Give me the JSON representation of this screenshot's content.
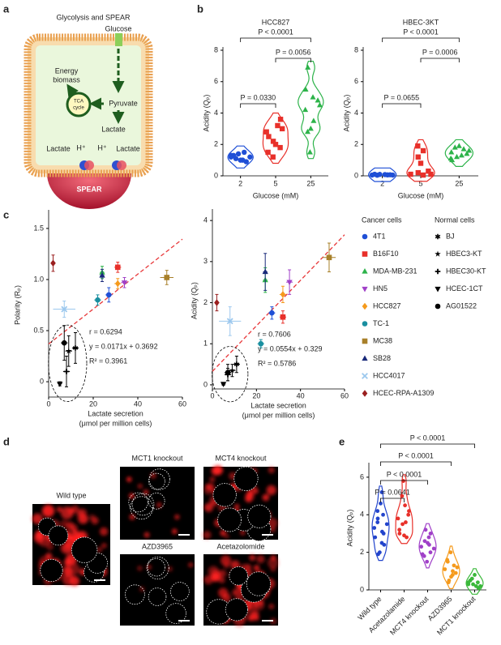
{
  "panel_labels": [
    "a",
    "b",
    "c",
    "d",
    "e"
  ],
  "panel_a": {
    "title": "Glycolysis and SPEAR",
    "glucose": "Glucose",
    "energy": [
      "Energy",
      "biomass"
    ],
    "tca": [
      "TCA",
      "cycle"
    ],
    "pyruvate": "Pyruvate",
    "lactate": "Lactate",
    "lactate_left": "Lactate",
    "h_left": "H⁺",
    "h_right": "H⁺",
    "lactate_right": "Lactate",
    "spear": "SPEAR"
  },
  "panel_d": {
    "images": [
      "Wild type",
      "MCT1 knockout",
      "MCT4 knockout",
      "AZD3965",
      "Acetazolomide"
    ]
  },
  "chart_data": [
    {
      "type": "violin",
      "title": "HCC827",
      "xlabel": "Glucose (mM)",
      "ylabel": "Acidity (Qₚ)",
      "categories": [
        "2",
        "5",
        "25"
      ],
      "ylim": [
        0,
        8
      ],
      "yticks": [
        0,
        2,
        4,
        6,
        8
      ],
      "groups": [
        {
          "color": "#1f4fd6",
          "marker": "circle",
          "values": [
            1.2,
            1.0,
            1.3,
            1.5,
            1.1,
            0.9,
            1.4,
            1.2,
            1.0,
            1.3
          ]
        },
        {
          "color": "#e8302a",
          "marker": "square",
          "values": [
            2.8,
            3.2,
            2.5,
            1.8,
            1.2,
            3.0,
            2.2,
            3.6,
            2.0,
            1.5
          ]
        },
        {
          "color": "#2db34a",
          "marker": "triangle",
          "values": [
            6.9,
            5.0,
            4.2,
            3.5,
            2.8,
            4.8,
            1.5,
            4.5,
            3.0,
            5.5
          ]
        }
      ],
      "comparisons": [
        {
          "label": "P = 0.0330",
          "pair": [
            0,
            1
          ]
        },
        {
          "label": "P = 0.0056",
          "pair": [
            1,
            2
          ]
        },
        {
          "label": "P < 0.0001",
          "pair": [
            0,
            2
          ]
        }
      ]
    },
    {
      "type": "violin",
      "title": "HBEC-3KT",
      "xlabel": "Glucose (mM)",
      "ylabel": "Acidity (Qₚ)",
      "categories": [
        "2",
        "5",
        "25"
      ],
      "ylim": [
        0,
        8
      ],
      "yticks": [
        0,
        2,
        4,
        6,
        8
      ],
      "groups": [
        {
          "color": "#1f4fd6",
          "marker": "circle",
          "values": [
            0.05,
            0.08,
            0.1,
            0.06,
            0.04,
            0.07,
            0.09,
            0.05
          ]
        },
        {
          "color": "#e8302a",
          "marker": "square",
          "values": [
            0.1,
            0.05,
            1.9,
            1.6,
            1.2,
            0.3,
            0.2,
            0.1,
            0.8
          ]
        },
        {
          "color": "#2db34a",
          "marker": "triangle",
          "values": [
            1.0,
            1.3,
            1.5,
            1.7,
            1.8,
            1.4,
            1.2,
            1.6,
            1.9,
            1.1
          ]
        }
      ],
      "comparisons": [
        {
          "label": "P = 0.0655",
          "pair": [
            0,
            1
          ]
        },
        {
          "label": "P = 0.0006",
          "pair": [
            1,
            2
          ]
        },
        {
          "label": "P < 0.0001",
          "pair": [
            0,
            2
          ]
        }
      ]
    },
    {
      "type": "scatter",
      "xlabel": [
        "Lactate secretion",
        "(μmol per million cells)"
      ],
      "ylabel": "Polarity (Rₚ)",
      "xlim": [
        0,
        60
      ],
      "xticks": [
        0,
        20,
        40,
        60
      ],
      "ylim": [
        -0.15,
        1.65
      ],
      "yticks": [
        0,
        0.5,
        {
          "value": 1,
          "label": "1.0"
        },
        1.5
      ],
      "r_label": "r = 0.6294",
      "fit_label": "y = 0.0171x + 0.3692",
      "r2_label": "R² = 0.3961",
      "series_groups": [
        {
          "name": "Cancer cells",
          "series": [
            {
              "name": "4T1",
              "color": "#1f4fd6",
              "marker": "circle",
              "x": [
                27
              ],
              "values": [
                0.85
              ],
              "xerr": [
                1.5
              ],
              "yerr": [
                0.07
              ]
            },
            {
              "name": "B16F10",
              "color": "#e8302a",
              "marker": "square",
              "x": [
                31
              ],
              "values": [
                1.12
              ],
              "xerr": [
                1.5
              ],
              "yerr": [
                0.05
              ]
            },
            {
              "name": "MDA-MB-231",
              "color": "#2db34a",
              "marker": "triangle",
              "x": [
                24
              ],
              "values": [
                1.07
              ],
              "xerr": [
                1
              ],
              "yerr": [
                0.06
              ]
            },
            {
              "name": "HN5",
              "color": "#a040c8",
              "marker": "triangle-down",
              "x": [
                34
              ],
              "values": [
                0.97
              ],
              "xerr": [
                1.5
              ],
              "yerr": [
                0.05
              ]
            },
            {
              "name": "HCC827",
              "color": "#f59a1c",
              "marker": "diamond",
              "x": [
                31
              ],
              "values": [
                0.96
              ],
              "xerr": [
                1.5
              ],
              "yerr": [
                0.05
              ]
            },
            {
              "name": "TC-1",
              "color": "#1a8fa0",
              "marker": "circle",
              "x": [
                22
              ],
              "values": [
                0.8
              ],
              "xerr": [
                1.5
              ],
              "yerr": [
                0.05
              ]
            },
            {
              "name": "MC38",
              "color": "#a8802a",
              "marker": "square",
              "x": [
                53
              ],
              "values": [
                1.02
              ],
              "xerr": [
                3
              ],
              "yerr": [
                0.07
              ]
            },
            {
              "name": "SB28",
              "color": "#1a2a7a",
              "marker": "triangle",
              "x": [
                24
              ],
              "values": [
                1.04
              ],
              "xerr": [
                1
              ],
              "yerr": [
                0.06
              ]
            },
            {
              "name": "HCC4017",
              "color": "#9cc8ee",
              "marker": "x",
              "x": [
                7
              ],
              "values": [
                0.71
              ],
              "xerr": [
                5
              ],
              "yerr": [
                0.08
              ]
            },
            {
              "name": "HCEC-RPA-A1309",
              "color": "#9a1f1f",
              "marker": "diamond",
              "x": [
                2
              ],
              "values": [
                1.16
              ],
              "xerr": [
                0.8
              ],
              "yerr": [
                0.08
              ]
            }
          ]
        },
        {
          "name": "Normal cells",
          "series": [
            {
              "name": "BJ",
              "color": "#000000",
              "marker": "asterisk",
              "x": [
                12
              ],
              "values": [
                0.33
              ],
              "xerr": [
                1.5
              ],
              "yerr": [
                0.15
              ]
            },
            {
              "name": "HBEC3-KT",
              "color": "#000000",
              "marker": "star",
              "x": [
                9
              ],
              "values": [
                0.3
              ],
              "xerr": [
                1.5
              ],
              "yerr": [
                0.15
              ]
            },
            {
              "name": "HBEC30-KT",
              "color": "#000000",
              "marker": "plus",
              "x": [
                8
              ],
              "values": [
                0.1
              ],
              "xerr": [
                1.5
              ],
              "yerr": [
                0.15
              ]
            },
            {
              "name": "HCEC-1CT",
              "color": "#000000",
              "marker": "triangle-down",
              "x": [
                5
              ],
              "values": [
                -0.02
              ],
              "xerr": [
                1
              ],
              "yerr": [
                0.02
              ]
            },
            {
              "name": "AG01522",
              "color": "#000000",
              "marker": "circle",
              "x": [
                7
              ],
              "values": [
                0.38
              ],
              "xerr": [
                1.5
              ],
              "yerr": [
                0.17
              ]
            }
          ]
        }
      ]
    },
    {
      "type": "scatter",
      "xlabel": [
        "Lactate secretion",
        "(μmol per million cells)"
      ],
      "ylabel": "Acidity (Qₚ)",
      "xlim": [
        0,
        60
      ],
      "xticks": [
        0,
        20,
        40,
        60
      ],
      "ylim": [
        -0.1,
        4.2
      ],
      "yticks": [
        0,
        1,
        2,
        3,
        4
      ],
      "r_label": "r = 0.7606",
      "fit_label": "y = 0.0554x + 0.329",
      "r2_label": "R² = 0.5786",
      "series_groups": [
        {
          "series": [
            {
              "x": [
                27
              ],
              "values": [
                1.75
              ],
              "xerr": [
                1.5
              ],
              "yerr": [
                0.15
              ]
            },
            {
              "x": [
                32
              ],
              "values": [
                1.65
              ],
              "xerr": [
                1.5
              ],
              "yerr": [
                0.15
              ]
            },
            {
              "x": [
                24
              ],
              "values": [
                2.55
              ],
              "xerr": [
                1
              ],
              "yerr": [
                0.3
              ]
            },
            {
              "x": [
                35
              ],
              "values": [
                2.5
              ],
              "xerr": [
                1.5
              ],
              "yerr": [
                0.3
              ]
            },
            {
              "x": [
                32
              ],
              "values": [
                2.2
              ],
              "xerr": [
                1.5
              ],
              "yerr": [
                0.2
              ]
            },
            {
              "x": [
                22
              ],
              "values": [
                1.0
              ],
              "xerr": [
                1.5
              ],
              "yerr": [
                0.1
              ]
            },
            {
              "x": [
                53
              ],
              "values": [
                3.1
              ],
              "xerr": [
                3
              ],
              "yerr": [
                0.35
              ]
            },
            {
              "x": [
                24
              ],
              "values": [
                2.75
              ],
              "xerr": [
                1
              ],
              "yerr": [
                0.45
              ]
            },
            {
              "x": [
                8
              ],
              "values": [
                1.55
              ],
              "xerr": [
                5
              ],
              "yerr": [
                0.35
              ]
            },
            {
              "x": [
                2
              ],
              "values": [
                2.0
              ],
              "xerr": [
                0.8
              ],
              "yerr": [
                0.2
              ]
            }
          ]
        },
        {
          "series": [
            {
              "x": [
                11
              ],
              "values": [
                0.5
              ],
              "xerr": [
                1.5
              ],
              "yerr": [
                0.2
              ]
            },
            {
              "x": [
                9
              ],
              "values": [
                0.35
              ],
              "xerr": [
                1.5
              ],
              "yerr": [
                0.15
              ]
            },
            {
              "x": [
                7
              ],
              "values": [
                0.25
              ],
              "xerr": [
                1.5
              ],
              "yerr": [
                0.15
              ]
            },
            {
              "x": [
                5
              ],
              "values": [
                0.02
              ],
              "xerr": [
                1
              ],
              "yerr": [
                0.03
              ]
            },
            {
              "x": [
                7
              ],
              "values": [
                0.3
              ],
              "xerr": [
                1.5
              ],
              "yerr": [
                0.2
              ]
            }
          ]
        }
      ]
    },
    {
      "type": "violin",
      "ylabel": "Acidity (Qₚ)",
      "categories": [
        "Wild type",
        "Acetazolamide",
        "MCT4 knockout",
        "AZD3965",
        "MCT1 knockout"
      ],
      "ylim": [
        0,
        6.6
      ],
      "yticks": [
        0,
        2,
        4,
        6
      ],
      "rotate_labels": true,
      "groups": [
        {
          "color": "#2244cc",
          "marker": "circle",
          "values": [
            3.3,
            2.5,
            4.2,
            3.0,
            3.8,
            5.2,
            2.0,
            3.5,
            4.6,
            2.8,
            3.1,
            1.9,
            4.0,
            3.6,
            2.4
          ]
        },
        {
          "color": "#e8302a",
          "marker": "circle",
          "values": [
            3.8,
            4.5,
            3.2,
            2.8,
            5.8,
            4.0,
            3.5,
            4.2,
            2.9,
            5.0,
            3.6,
            3.0
          ]
        },
        {
          "color": "#a040c8",
          "marker": "circle",
          "values": [
            2.3,
            2.8,
            1.8,
            2.0,
            2.6,
            3.0,
            1.5,
            2.2,
            2.5,
            1.9,
            2.4,
            3.2
          ]
        },
        {
          "color": "#f59a1c",
          "marker": "circle",
          "values": [
            1.1,
            0.8,
            1.5,
            1.3,
            0.5,
            0.9,
            2.0,
            1.2,
            0.7,
            1.6,
            1.0,
            0.4
          ]
        },
        {
          "color": "#3ab83a",
          "marker": "circle",
          "values": [
            0.3,
            0.2,
            0.5,
            0.4,
            0.6,
            0.1,
            0.3,
            0.2,
            0.8,
            0.4
          ]
        }
      ],
      "comparisons": [
        {
          "label": "P = 0.0641",
          "pair": [
            0,
            1
          ]
        },
        {
          "label": "P < 0.0001",
          "pair": [
            0,
            2
          ]
        },
        {
          "label": "P < 0.0001",
          "pair": [
            0,
            3
          ]
        },
        {
          "label": "P < 0.0001",
          "pair": [
            0,
            4
          ]
        }
      ]
    }
  ]
}
